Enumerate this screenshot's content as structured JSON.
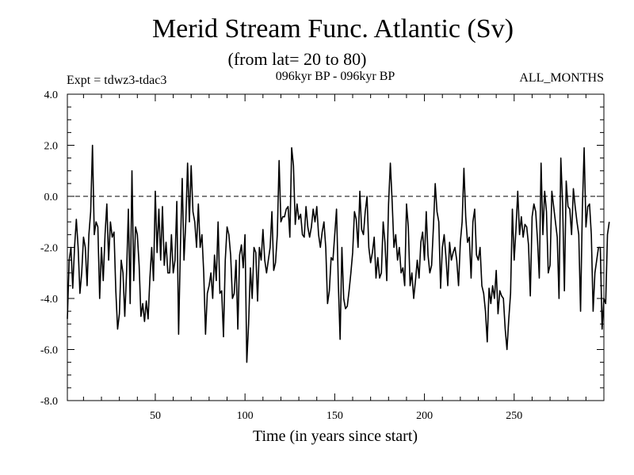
{
  "chart_data": {
    "type": "line",
    "title": "Merid Stream Func. Atlantic (Sv)",
    "subtitle": "(from lat= 20 to 80)",
    "annotations": {
      "left": "Expt = tdwz3-tdac3",
      "center": "096kyr BP - 096kyr BP",
      "right": "ALL_MONTHS"
    },
    "xlabel": "Time (in years since start)",
    "ylabel": "",
    "xlim": [
      1,
      300
    ],
    "ylim": [
      -8.0,
      4.0
    ],
    "xticks": [
      50,
      100,
      150,
      200,
      250
    ],
    "yticks": [
      4.0,
      2.0,
      0.0,
      -2.0,
      -4.0,
      -6.0,
      -8.0
    ],
    "ytick_labels": [
      "4.0",
      "2.0",
      "0.0",
      "-2.0",
      "-4.0",
      "-6.0",
      "-8.0"
    ],
    "xtick_labels": [
      "50",
      "100",
      "150",
      "200",
      "250"
    ],
    "reference_line": {
      "y": 0.0,
      "style": "dashed"
    },
    "grid": false,
    "series": [
      {
        "x_start": 1,
        "x_step": 1,
        "values": [
          -4.8,
          -2.5,
          -2.0,
          -3.6,
          -2.0,
          -0.9,
          -2.0,
          -3.8,
          -3.0,
          -1.6,
          -2.0,
          -3.5,
          -1.5,
          -0.6,
          2.0,
          -1.5,
          -1.0,
          -1.2,
          -4.0,
          -2.0,
          -3.3,
          -1.5,
          -0.3,
          -2.5,
          -1.0,
          -1.6,
          -1.4,
          -3.7,
          -5.2,
          -4.6,
          -2.5,
          -3.0,
          -4.7,
          -3.0,
          -0.5,
          -4.2,
          1.0,
          -3.3,
          -1.2,
          -1.5,
          -2.7,
          -4.7,
          -4.2,
          -4.9,
          -4.1,
          -4.8,
          -3.2,
          -2.0,
          -3.3,
          0.2,
          -2.2,
          -0.5,
          -2.5,
          -0.4,
          -2.7,
          -1.8,
          -3.0,
          -3.0,
          -1.5,
          -3.0,
          -2.5,
          -0.2,
          -5.4,
          -2.0,
          0.7,
          -2.5,
          -1.0,
          1.3,
          -1.0,
          1.2,
          -0.6,
          -1.0,
          -2.0,
          -0.3,
          -2.0,
          -1.5,
          -3.0,
          -5.4,
          -3.8,
          -3.5,
          -3.0,
          -4.0,
          -2.3,
          -3.3,
          -1.0,
          -3.8,
          -3.7,
          -5.5,
          -2.5,
          -1.2,
          -1.5,
          -2.3,
          -4.0,
          -3.8,
          -2.5,
          -5.2,
          -2.3,
          -1.9,
          -2.8,
          -1.5,
          -6.5,
          -5.0,
          -2.8,
          -4.0,
          -2.0,
          -2.2,
          -4.1,
          -2.0,
          -2.5,
          -1.3,
          -2.5,
          -3.0,
          -2.5,
          -2.0,
          -0.6,
          -2.9,
          -2.6,
          -1.5,
          1.4,
          -1.0,
          -0.8,
          -0.8,
          -0.5,
          -0.4,
          -1.6,
          1.9,
          1.2,
          -1.1,
          -0.3,
          -0.9,
          -0.7,
          -1.5,
          -1.6,
          -0.4,
          -1.2,
          -1.6,
          -1.2,
          -0.5,
          -1.0,
          -0.4,
          -1.5,
          -2.0,
          -1.4,
          -1.0,
          -2.0,
          -4.2,
          -3.7,
          -2.4,
          -2.5,
          -1.5,
          -0.5,
          -3.4,
          -5.6,
          -2.0,
          -4.0,
          -4.4,
          -4.3,
          -3.7,
          -3.0,
          -2.2,
          -0.6,
          -0.9,
          -2.0,
          0.2,
          -1.3,
          -1.5,
          -0.6,
          0.0,
          -2.0,
          -2.6,
          -2.2,
          -1.6,
          -3.2,
          -2.4,
          -3.2,
          -3.0,
          -1.0,
          -1.8,
          -3.3,
          -0.3,
          1.3,
          -0.2,
          -2.0,
          -1.5,
          -2.5,
          -2.0,
          -3.0,
          -2.8,
          -3.5,
          -0.3,
          -1.2,
          -3.5,
          -3.0,
          -4.0,
          -3.3,
          -2.5,
          -3.2,
          -1.8,
          -1.4,
          -2.5,
          -0.6,
          -2.3,
          -3.0,
          -2.7,
          -1.2,
          0.5,
          -0.6,
          -1.0,
          -3.6,
          -2.0,
          -1.5,
          -2.4,
          -3.5,
          -1.8,
          -2.5,
          -2.2,
          -2.0,
          -2.5,
          -3.5,
          -1.8,
          -1.0,
          1.1,
          -0.8,
          -1.8,
          -1.6,
          -3.2,
          -1.0,
          -0.5,
          -2.3,
          -2.5,
          -2.0,
          -3.5,
          -3.8,
          -4.5,
          -5.7,
          -3.6,
          -4.2,
          -3.5,
          -4.0,
          -2.9,
          -4.6,
          -3.7,
          -3.9,
          -4.0,
          -5.2,
          -6.0,
          -4.8,
          -3.8,
          -0.5,
          -2.5,
          -1.3,
          0.2,
          -1.5,
          -0.8,
          -1.6,
          -1.1,
          -1.2,
          -1.9,
          -3.9,
          -0.8,
          -0.3,
          -0.6,
          -1.7,
          -3.2,
          1.3,
          -1.5,
          0.2,
          -0.6,
          -3.0,
          -2.7,
          0.2,
          -0.4,
          -1.0,
          -1.6,
          -4.0,
          1.5,
          -0.3,
          -3.7,
          0.6,
          -0.4,
          -0.5,
          -1.5,
          0.3,
          -0.4,
          -1.0,
          -1.5,
          -4.5,
          -0.5,
          1.9,
          -1.2,
          -0.4,
          -0.3,
          -1.5,
          -4.5,
          -3.0,
          -2.5,
          -2.0,
          -2.0,
          -5.2,
          -4.0,
          -4.2,
          -1.5,
          -1.0
        ]
      }
    ]
  }
}
